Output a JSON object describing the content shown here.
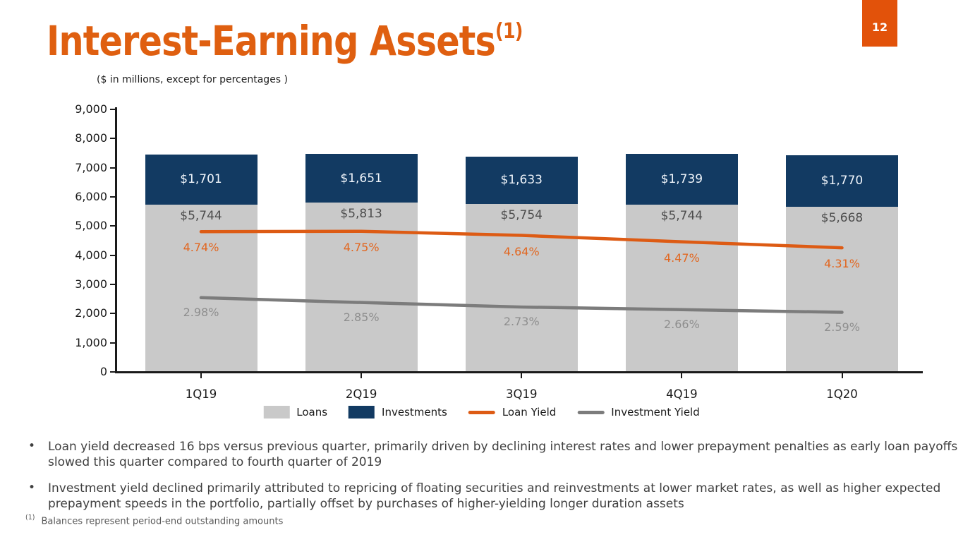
{
  "slide": {
    "page_number": "12",
    "title": "Interest-Earning Assets",
    "title_superscript": "(1)",
    "subtitle": "($ in millions, except for percentages )",
    "title_color": "#DF5F10",
    "badge_color": "#E2520A"
  },
  "chart_data": {
    "type": "bar",
    "subtype": "stacked-bars-with-overlaid-lines",
    "stacked": true,
    "grid": false,
    "legend_position": "bottom",
    "categories": [
      "1Q19",
      "2Q19",
      "3Q19",
      "4Q19",
      "1Q20"
    ],
    "bar_series": [
      {
        "name": "Loans",
        "values": [
          5744,
          5813,
          5754,
          5744,
          5668
        ],
        "labels": [
          "$5,744",
          "$5,813",
          "$5,754",
          "$5,744",
          "$5,668"
        ],
        "color": "#C9C9C9",
        "label_color": "#4D4D4D"
      },
      {
        "name": "Investments",
        "values": [
          1701,
          1651,
          1633,
          1739,
          1770
        ],
        "labels": [
          "$1,701",
          "$1,651",
          "$1,633",
          "$1,739",
          "$1,770"
        ],
        "color": "#123A62",
        "label_color": "#EFF4FA"
      }
    ],
    "line_series": [
      {
        "name": "Loan Yield",
        "values": [
          4.74,
          4.75,
          4.64,
          4.47,
          4.31
        ],
        "labels": [
          "4.74%",
          "4.75%",
          "4.64%",
          "4.47%",
          "4.31%"
        ],
        "color": "#DD5B14",
        "label_color": "#E2661F"
      },
      {
        "name": "Investment Yield",
        "values": [
          2.98,
          2.85,
          2.73,
          2.66,
          2.59
        ],
        "labels": [
          "2.98%",
          "2.85%",
          "2.73%",
          "2.66%",
          "2.59%"
        ],
        "color": "#7C7C7C",
        "label_color": "#8E8E8E"
      }
    ],
    "y_axis": {
      "min": 0,
      "max": 9000,
      "step": 1000,
      "tick_labels": [
        "9,000",
        "8,000",
        "7,000",
        "6,000",
        "5,000",
        "4,000",
        "3,000",
        "2,000",
        "1,000",
        "0"
      ]
    },
    "y2_axis": {
      "visible": false,
      "min": 1,
      "max": 8,
      "unit": "%"
    }
  },
  "bullets": [
    "Loan yield decreased 16 bps versus previous quarter, primarily driven by declining interest rates and lower prepayment penalties as early loan payoffs slowed this quarter compared to fourth quarter of 2019",
    "Investment yield declined primarily attributed to repricing of floating securities and reinvestments at lower market rates, as well as higher expected prepayment speeds in the portfolio, partially offset by purchases of higher-yielding longer duration assets"
  ],
  "footnote": {
    "marker": "(1)",
    "text": "Balances represent period-end outstanding amounts"
  }
}
